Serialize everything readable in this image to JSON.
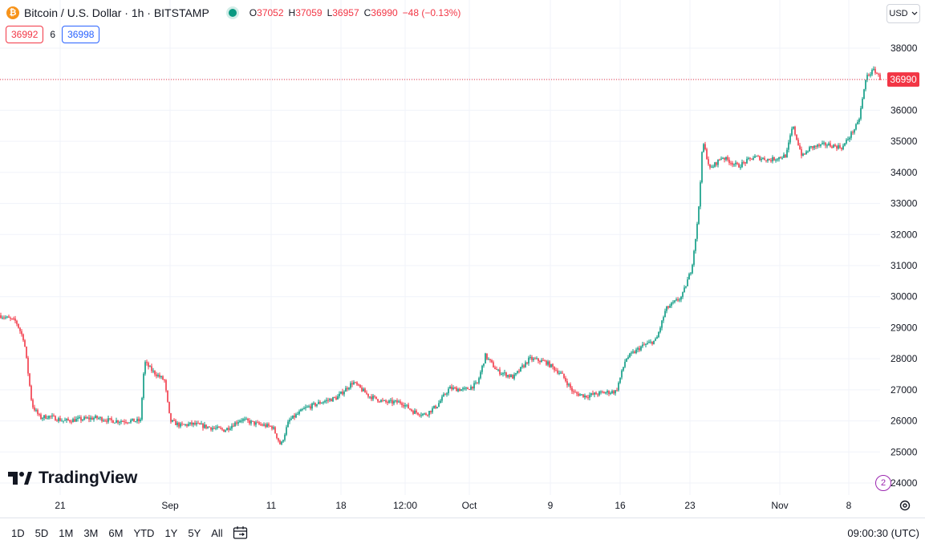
{
  "header": {
    "coin_glyph": "₿",
    "title": "Bitcoin / U.S. Dollar · 1h · BITSTAMP",
    "ohlc": [
      {
        "k": "O",
        "v": "37052"
      },
      {
        "k": "H",
        "v": "37059"
      },
      {
        "k": "L",
        "v": "36957"
      },
      {
        "k": "C",
        "v": "36990"
      },
      {
        "k": "",
        "v": "−48 (−0.13%)"
      }
    ]
  },
  "trade": {
    "sell": "36992",
    "spread": "6",
    "buy": "36998"
  },
  "currency": "USD",
  "logo_text": "TradingView",
  "range_buttons": [
    "1D",
    "5D",
    "1M",
    "3M",
    "6M",
    "YTD",
    "1Y",
    "5Y",
    "All"
  ],
  "clock": "09:00:30 (UTC)",
  "colors": {
    "up": "#089981",
    "down": "#f23645",
    "price_tag": "#f23645",
    "grid": "#f0f3fa"
  },
  "chart_data": {
    "type": "candlestick",
    "symbol": "BTCUSD",
    "interval": "1h",
    "y_ticks": [
      24000,
      25000,
      26000,
      27000,
      28000,
      29000,
      30000,
      31000,
      32000,
      33000,
      34000,
      35000,
      36000,
      37000,
      38000
    ],
    "y_range": [
      23600,
      38500
    ],
    "x_ticks": [
      "21",
      "Sep",
      "11",
      "18",
      "12:00",
      "Oct",
      "9",
      "16",
      "23",
      "Nov",
      "8"
    ],
    "last_price": 36990,
    "last_price_label": "36990",
    "price_anchors": [
      [
        0,
        29400
      ],
      [
        20,
        29200
      ],
      [
        30,
        28600
      ],
      [
        40,
        26500
      ],
      [
        50,
        26100
      ],
      [
        60,
        26150
      ],
      [
        80,
        26000
      ],
      [
        100,
        26050
      ],
      [
        120,
        26100
      ],
      [
        140,
        26000
      ],
      [
        160,
        26000
      ],
      [
        175,
        26000
      ],
      [
        180,
        27900
      ],
      [
        190,
        27600
      ],
      [
        205,
        27300
      ],
      [
        212,
        26000
      ],
      [
        225,
        25850
      ],
      [
        240,
        25900
      ],
      [
        260,
        25800
      ],
      [
        280,
        25700
      ],
      [
        300,
        26050
      ],
      [
        320,
        25900
      ],
      [
        340,
        25800
      ],
      [
        350,
        25200
      ],
      [
        360,
        26000
      ],
      [
        380,
        26400
      ],
      [
        400,
        26600
      ],
      [
        420,
        26750
      ],
      [
        440,
        27250
      ],
      [
        460,
        26800
      ],
      [
        480,
        26600
      ],
      [
        500,
        26600
      ],
      [
        515,
        26300
      ],
      [
        530,
        26200
      ],
      [
        545,
        26500
      ],
      [
        560,
        27050
      ],
      [
        580,
        27000
      ],
      [
        595,
        27200
      ],
      [
        605,
        28100
      ],
      [
        620,
        27600
      ],
      [
        640,
        27400
      ],
      [
        660,
        28000
      ],
      [
        680,
        27900
      ],
      [
        700,
        27500
      ],
      [
        715,
        26900
      ],
      [
        730,
        26800
      ],
      [
        750,
        26900
      ],
      [
        768,
        26950
      ],
      [
        780,
        28000
      ],
      [
        800,
        28400
      ],
      [
        818,
        28600
      ],
      [
        830,
        29600
      ],
      [
        850,
        30000
      ],
      [
        862,
        30900
      ],
      [
        870,
        32500
      ],
      [
        876,
        35000
      ],
      [
        885,
        34100
      ],
      [
        900,
        34500
      ],
      [
        920,
        34200
      ],
      [
        940,
        34500
      ],
      [
        960,
        34400
      ],
      [
        980,
        34550
      ],
      [
        988,
        35500
      ],
      [
        1000,
        34500
      ],
      [
        1010,
        34800
      ],
      [
        1030,
        34900
      ],
      [
        1050,
        34800
      ],
      [
        1060,
        35200
      ],
      [
        1070,
        35600
      ],
      [
        1080,
        37100
      ],
      [
        1090,
        37300
      ],
      [
        1098,
        36990
      ]
    ]
  }
}
